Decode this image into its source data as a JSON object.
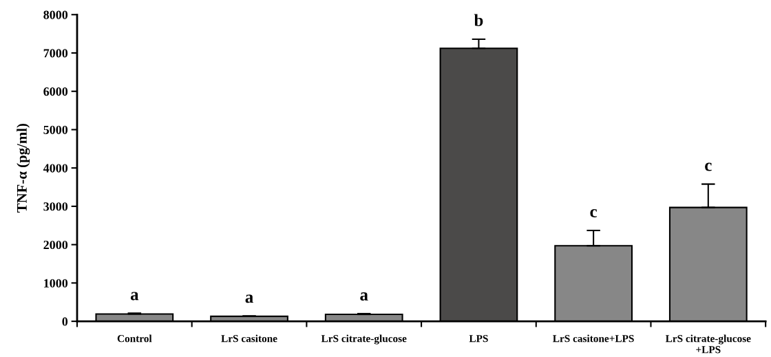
{
  "chart_data": {
    "type": "bar",
    "ylabel": "TNF-α (pg/ml)",
    "categories": [
      "Control",
      "LrS casitone",
      "LrS citrate-glucose",
      "LPS",
      "LrS casitone+LPS",
      "LrS citrate-glucose\n+LPS"
    ],
    "values": [
      190,
      130,
      180,
      7120,
      1970,
      2970
    ],
    "errors": [
      [
        190,
        210
      ],
      [
        130,
        140
      ],
      [
        180,
        200
      ],
      [
        7120,
        7360
      ],
      [
        1970,
        2370
      ],
      [
        2970,
        3580
      ]
    ],
    "colors": [
      "#878787",
      "#878787",
      "#878787",
      "#4b4a49",
      "#878787",
      "#878787"
    ],
    "ylim": [
      0,
      8000
    ],
    "yticks": [
      0,
      1000,
      2000,
      3000,
      4000,
      5000,
      6000,
      7000,
      8000
    ],
    "grid": false,
    "annotations": [
      {
        "text": "a",
        "x": "Control",
        "y": 210
      },
      {
        "text": "a",
        "x": "LrS casitone",
        "y": 140
      },
      {
        "text": "a",
        "x": "LrS citrate-glucose",
        "y": 200
      },
      {
        "text": "b",
        "x": "LPS",
        "y": 7360
      },
      {
        "text": "c",
        "x": "LrS casitone+LPS",
        "y": 2370
      },
      {
        "text": "c",
        "x": "LrS citrate-glucose\n+LPS",
        "y": 3580
      }
    ]
  }
}
